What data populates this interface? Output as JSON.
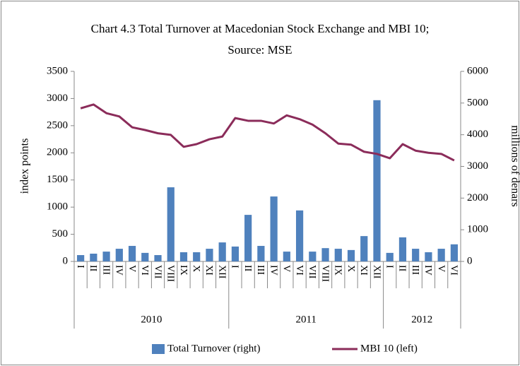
{
  "chart_data": {
    "type": "bar-line",
    "title": [
      "Chart 4.3 Total Turnover at Macedonian Stock Exchange and MBI 10;",
      "Source: MSE"
    ],
    "y_label": "index points",
    "y2_label": "millions of denars",
    "category_groups": [
      {
        "label": "2010",
        "categories": [
          "I",
          "II",
          "III",
          "IV",
          "V",
          "VI",
          "VII",
          "VIII",
          "IX",
          "X",
          "XI",
          "XII"
        ]
      },
      {
        "label": "2011",
        "categories": [
          "I",
          "II",
          "III",
          "IV",
          "V",
          "VI",
          "VII",
          "VIII",
          "IX",
          "X",
          "XI",
          "XII"
        ]
      },
      {
        "label": "2012",
        "categories": [
          "I",
          "II",
          "III",
          "IV",
          "V",
          "VI"
        ]
      }
    ],
    "series": [
      {
        "name": "Total Turnover (right)",
        "type": "bar",
        "axis": "y2",
        "color": "#4f81bd",
        "values": [
          200,
          245,
          310,
          400,
          490,
          270,
          200,
          2340,
          290,
          290,
          400,
          600,
          470,
          1470,
          490,
          2050,
          310,
          1610,
          310,
          420,
          400,
          360,
          800,
          5090,
          270,
          760,
          400,
          290,
          400,
          540
        ]
      },
      {
        "name": "MBI 10 (left)",
        "type": "line",
        "axis": "y",
        "color": "#8b2c5a",
        "values": [
          2820,
          2890,
          2730,
          2670,
          2470,
          2420,
          2360,
          2330,
          2110,
          2160,
          2250,
          2300,
          2640,
          2590,
          2590,
          2540,
          2690,
          2620,
          2520,
          2360,
          2170,
          2150,
          2020,
          1980,
          1900,
          2160,
          2040,
          2000,
          1980,
          1860
        ]
      }
    ],
    "ylim": [
      0,
      3500
    ],
    "yticks": [
      0,
      500,
      1000,
      1500,
      2000,
      2500,
      3000,
      3500
    ],
    "y2lim": [
      0,
      6000
    ],
    "y2ticks": [
      0,
      1000,
      2000,
      3000,
      4000,
      5000,
      6000
    ],
    "legend": "bottom"
  }
}
